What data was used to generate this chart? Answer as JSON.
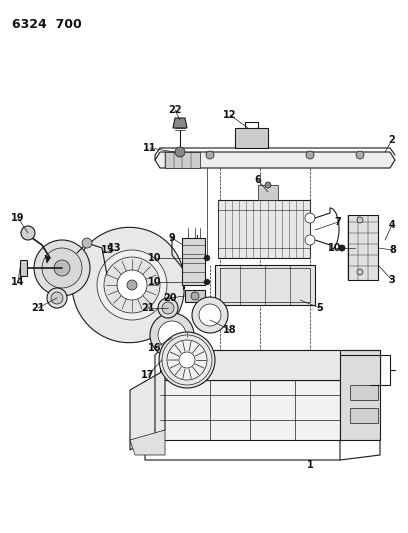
{
  "title": "6324  700",
  "bg": "#ffffff",
  "lc": "#1a1a1a",
  "tc": "#111111",
  "fig_w": 4.08,
  "fig_h": 5.33,
  "dpi": 100
}
